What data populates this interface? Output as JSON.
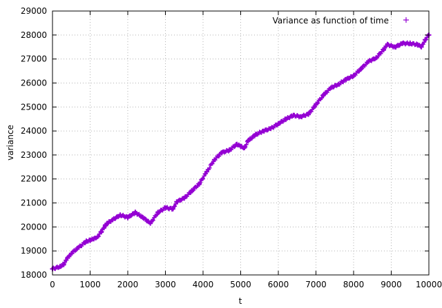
{
  "chart_data": {
    "type": "scatter",
    "title": "",
    "xlabel": "t",
    "ylabel": "variance",
    "xlim": [
      0,
      10000
    ],
    "ylim": [
      18000,
      29000
    ],
    "xticks": [
      0,
      1000,
      2000,
      3000,
      4000,
      5000,
      6000,
      7000,
      8000,
      9000,
      10000
    ],
    "yticks": [
      18000,
      19000,
      20000,
      21000,
      22000,
      23000,
      24000,
      25000,
      26000,
      27000,
      28000,
      29000
    ],
    "grid": true,
    "legend_position": "top-right",
    "marker": "plus",
    "series": [
      {
        "name": "Variance as function of time",
        "color": "#9400d3",
        "x": [
          0,
          200,
          300,
          400,
          500,
          700,
          900,
          1000,
          1100,
          1200,
          1300,
          1400,
          1450,
          1600,
          1800,
          2000,
          2200,
          2400,
          2600,
          2800,
          3000,
          3200,
          3300,
          3500,
          3700,
          3900,
          4100,
          4300,
          4500,
          4700,
          4900,
          5000,
          5100,
          5200,
          5400,
          5600,
          5800,
          6000,
          6200,
          6400,
          6600,
          6800,
          7000,
          7200,
          7400,
          7600,
          7800,
          8000,
          8200,
          8400,
          8600,
          8800,
          8900,
          9100,
          9300,
          9500,
          9700,
          9800,
          9900,
          10000
        ],
        "y": [
          18250,
          18350,
          18450,
          18700,
          18900,
          19150,
          19400,
          19450,
          19500,
          19600,
          19800,
          20050,
          20150,
          20300,
          20500,
          20400,
          20600,
          20400,
          20150,
          20600,
          20800,
          20750,
          21050,
          21200,
          21500,
          21800,
          22300,
          22800,
          23100,
          23200,
          23450,
          23350,
          23300,
          23600,
          23850,
          24000,
          24100,
          24300,
          24500,
          24650,
          24600,
          24700,
          25100,
          25500,
          25800,
          25950,
          26150,
          26300,
          26600,
          26900,
          27050,
          27400,
          27600,
          27500,
          27650,
          27650,
          27600,
          27500,
          27800,
          28000
        ]
      }
    ]
  }
}
